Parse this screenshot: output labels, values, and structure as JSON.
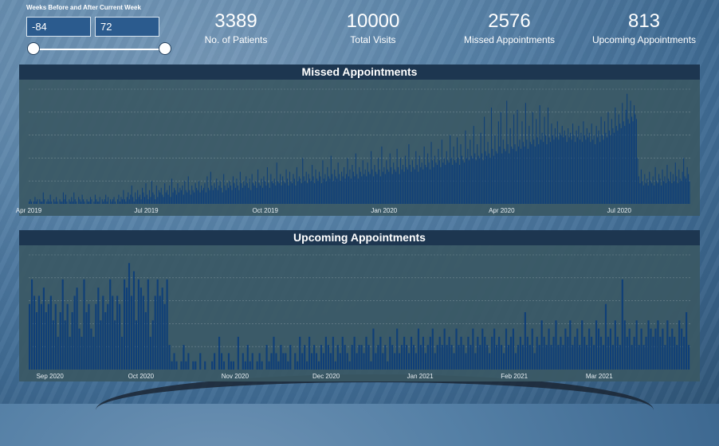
{
  "slicer": {
    "title": "Weeks Before and After Current Week",
    "min_value": "-84",
    "max_value": "72",
    "range_low_fraction": 0.0,
    "range_high_fraction": 1.0
  },
  "kpis": [
    {
      "value": "3389",
      "label": "No. of Patients"
    },
    {
      "value": "10000",
      "label": "Total Visits"
    },
    {
      "value": "2576",
      "label": "Missed Appointments"
    },
    {
      "value": "813",
      "label": "Upcoming Appointments"
    }
  ],
  "colors": {
    "bar": "#0f3f78",
    "panel_header": "#1d3650",
    "panel_body": "#3a5864",
    "slicer_box": "#2b5b8e"
  },
  "chart_data": [
    {
      "type": "bar",
      "title": "Missed Appointments",
      "xlabel": "",
      "ylabel": "",
      "x_start": "2019-04-01",
      "x_end": "2020-08-25",
      "ylim": [
        0,
        50
      ],
      "grid": true,
      "x_tick_labels": [
        "Apr 2019",
        "Jul 2019",
        "Oct 2019",
        "Jan 2020",
        "Apr 2020",
        "Jul 2020"
      ],
      "x_tick_dates": [
        "2019-04-01",
        "2019-07-01",
        "2019-10-01",
        "2020-01-01",
        "2020-04-01",
        "2020-07-01"
      ],
      "values": [
        1,
        2,
        1,
        0,
        1,
        3,
        1,
        2,
        0,
        2,
        1,
        1,
        5,
        2,
        0,
        1,
        2,
        1,
        4,
        1,
        0,
        2,
        1,
        3,
        1,
        0,
        2,
        1,
        1,
        5,
        2,
        4,
        1,
        0,
        2,
        1,
        3,
        1,
        5,
        2,
        1,
        0,
        3,
        2,
        1,
        4,
        2,
        1,
        0,
        2,
        1,
        1,
        3,
        2,
        0,
        1,
        4,
        2,
        1,
        1,
        3,
        0,
        2,
        1,
        2,
        4,
        1,
        3,
        0,
        2,
        1,
        2,
        3,
        1,
        0,
        2,
        4,
        1,
        3,
        2,
        6,
        2,
        1,
        3,
        5,
        2,
        4,
        8,
        3,
        1,
        5,
        2,
        6,
        3,
        4,
        2,
        7,
        5,
        3,
        9,
        4,
        2,
        6,
        3,
        10,
        5,
        4,
        2,
        8,
        3,
        6,
        5,
        7,
        4,
        3,
        9,
        5,
        6,
        4,
        8,
        3,
        11,
        5,
        7,
        6,
        4,
        9,
        5,
        7,
        6,
        8,
        4,
        10,
        6,
        5,
        12,
        6,
        4,
        8,
        6,
        5,
        9,
        7,
        6,
        10,
        5,
        8,
        6,
        7,
        9,
        5,
        12,
        7,
        6,
        14,
        8,
        6,
        9,
        7,
        11,
        6,
        8,
        10,
        7,
        5,
        13,
        8,
        6,
        9,
        7,
        10,
        8,
        6,
        12,
        9,
        7,
        11,
        8,
        6,
        14,
        9,
        7,
        10,
        8,
        12,
        9,
        7,
        11,
        6,
        13,
        9,
        8,
        10,
        7,
        15,
        9,
        8,
        11,
        7,
        12,
        10,
        8,
        16,
        9,
        7,
        13,
        10,
        9,
        11,
        8,
        18,
        10,
        9,
        13,
        8,
        12,
        10,
        9,
        15,
        11,
        8,
        14,
        10,
        9,
        13,
        11,
        8,
        16,
        10,
        12,
        11,
        9,
        20,
        12,
        10,
        14,
        9,
        13,
        11,
        10,
        17,
        12,
        9,
        15,
        11,
        10,
        14,
        12,
        9,
        19,
        11,
        13,
        10,
        16,
        12,
        11,
        21,
        13,
        10,
        15,
        12,
        11,
        18,
        13,
        10,
        14,
        12,
        16,
        11,
        13,
        20,
        12,
        15,
        11,
        17,
        14,
        12,
        22,
        13,
        11,
        16,
        14,
        12,
        19,
        13,
        15,
        12,
        18,
        14,
        13,
        23,
        15,
        12,
        17,
        14,
        13,
        20,
        15,
        12,
        25,
        14,
        16,
        13,
        19,
        15,
        14,
        22,
        16,
        13,
        18,
        15,
        14,
        24,
        16,
        13,
        20,
        15,
        17,
        14,
        21,
        16,
        15,
        26,
        17,
        14,
        19,
        16,
        15,
        23,
        17,
        14,
        21,
        16,
        18,
        15,
        25,
        17,
        16,
        22,
        18,
        15,
        27,
        19,
        16,
        21,
        18,
        17,
        24,
        19,
        16,
        28,
        18,
        20,
        17,
        23,
        19,
        18,
        30,
        20,
        17,
        25,
        19,
        18,
        29,
        20,
        17,
        26,
        21,
        19,
        18,
        32,
        20,
        24,
        19,
        28,
        21,
        20,
        34,
        22,
        19,
        26,
        21,
        20,
        31,
        22,
        19,
        38,
        23,
        21,
        27,
        22,
        20,
        42,
        24,
        21,
        30,
        23,
        22,
        36,
        25,
        40,
        22,
        28,
        24,
        23,
        45,
        26,
        22,
        33,
        25,
        24,
        39,
        26,
        23,
        41,
        25,
        28,
        24,
        36,
        27,
        25,
        44,
        28,
        24,
        34,
        27,
        26,
        40,
        28,
        25,
        37,
        29,
        26,
        43,
        28,
        31,
        27,
        38,
        30,
        26,
        42,
        29,
        27,
        35,
        30,
        28,
        33,
        29,
        36,
        28,
        31,
        30,
        34,
        29,
        32,
        30,
        27,
        33,
        29,
        31,
        28,
        35,
        30,
        27,
        32,
        29,
        34,
        28,
        31,
        27,
        36,
        30,
        28,
        33,
        29,
        31,
        27,
        35,
        28,
        30,
        26,
        34,
        29,
        32,
        27,
        38,
        30,
        28,
        36,
        31,
        29,
        40,
        32,
        30,
        37,
        33,
        31,
        42,
        34,
        32,
        39,
        35,
        33,
        44,
        36,
        34,
        41,
        48,
        37,
        35,
        45,
        38,
        36,
        43,
        39,
        37,
        20,
        12,
        9,
        15,
        10,
        8,
        13,
        9,
        11,
        8,
        14,
        10,
        9,
        12,
        8,
        16,
        10,
        9,
        13,
        11,
        8,
        15,
        10,
        12,
        9,
        17,
        11,
        10,
        14,
        9,
        13,
        10,
        18,
        12,
        9,
        15,
        11,
        10,
        14,
        20,
        12,
        11,
        16,
        13,
        10
      ]
    },
    {
      "type": "bar",
      "title": "Upcoming Appointments",
      "xlabel": "",
      "ylabel": "",
      "x_start": "2020-08-25",
      "x_end": "2021-03-31",
      "ylim": [
        0,
        14
      ],
      "grid": true,
      "x_tick_labels": [
        "Sep 2020",
        "Oct 2020",
        "Nov 2020",
        "Dec 2020",
        "Jan 2021",
        "Feb 2021",
        "Mar 2021"
      ],
      "x_tick_dates": [
        "2020-09-01",
        "2020-10-01",
        "2020-11-01",
        "2020-12-01",
        "2021-01-01",
        "2021-02-01",
        "2021-03-01"
      ],
      "values": [
        8,
        11,
        9,
        7,
        9,
        8,
        10,
        7,
        8,
        9,
        6,
        8,
        4,
        7,
        11,
        6,
        8,
        4,
        7,
        9,
        10,
        5,
        4,
        11,
        7,
        8,
        5,
        4,
        8,
        10,
        6,
        9,
        7,
        8,
        11,
        9,
        6,
        9,
        8,
        4,
        11,
        10,
        13,
        9,
        12,
        6,
        11,
        10,
        9,
        7,
        11,
        4,
        6,
        9,
        11,
        9,
        10,
        8,
        11,
        3,
        1,
        2,
        1,
        0,
        1,
        3,
        1,
        2,
        0,
        1,
        1,
        0,
        2,
        0,
        1,
        0,
        0,
        1,
        2,
        0,
        4,
        2,
        1,
        0,
        2,
        1,
        1,
        0,
        4,
        0,
        2,
        1,
        3,
        1,
        2,
        0,
        1,
        2,
        1,
        0,
        3,
        1,
        2,
        4,
        2,
        1,
        3,
        2,
        2,
        1,
        3,
        0,
        2,
        1,
        4,
        2,
        3,
        1,
        4,
        2,
        3,
        2,
        1,
        3,
        2,
        4,
        3,
        2,
        4,
        1,
        3,
        2,
        4,
        3,
        2,
        1,
        3,
        4,
        2,
        3,
        3,
        2,
        4,
        3,
        1,
        5,
        2,
        3,
        4,
        2,
        3,
        1,
        4,
        3,
        2,
        5,
        2,
        3,
        4,
        3,
        2,
        4,
        3,
        2,
        5,
        3,
        4,
        2,
        3,
        4,
        5,
        2,
        3,
        4,
        3,
        5,
        3,
        4,
        3,
        2,
        5,
        3,
        4,
        3,
        2,
        4,
        3,
        5,
        2,
        4,
        3,
        5,
        4,
        3,
        2,
        4,
        5,
        3,
        4,
        3,
        2,
        5,
        3,
        4,
        5,
        2,
        3,
        4,
        3,
        7,
        4,
        3,
        5,
        2,
        4,
        3,
        6,
        4,
        3,
        5,
        3,
        4,
        6,
        3,
        4,
        3,
        5,
        4,
        6,
        3,
        4,
        5,
        3,
        6,
        4,
        3,
        5,
        4,
        3,
        6,
        5,
        4,
        3,
        8,
        4,
        5,
        3,
        6,
        4,
        3,
        11,
        6,
        4,
        5,
        3,
        4,
        6,
        3,
        5,
        3,
        4,
        6,
        5,
        4,
        5,
        6,
        4,
        5,
        3,
        6,
        4,
        5,
        4,
        3,
        6,
        5,
        4,
        7,
        3
      ]
    }
  ]
}
